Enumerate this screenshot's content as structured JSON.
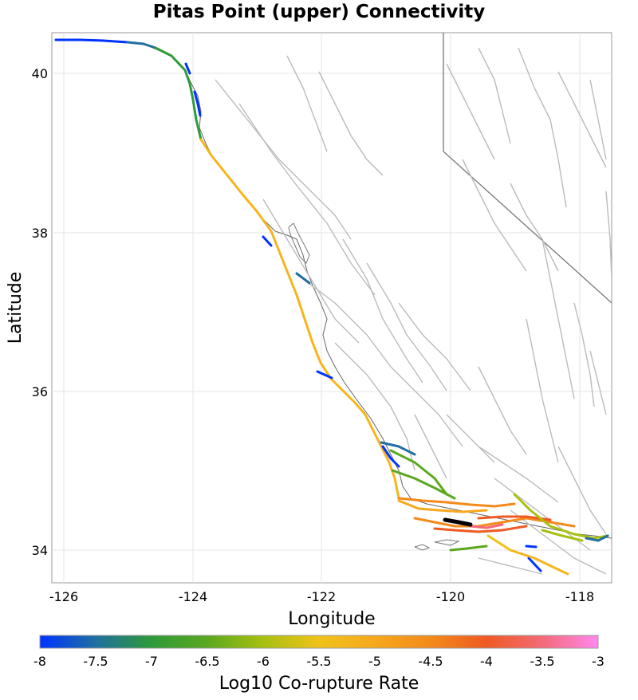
{
  "title": "Pitas Point (upper) Connectivity",
  "chart_data": {
    "type": "map",
    "xlabel": "Longitude",
    "ylabel": "Latitude",
    "xlim": [
      -126.3,
      -117.3
    ],
    "ylim": [
      33.6,
      40.5
    ],
    "x_ticks": [
      "-126",
      "-124",
      "-122",
      "-120",
      "-118"
    ],
    "y_ticks": [
      "34",
      "36",
      "38",
      "40"
    ],
    "grid": true,
    "colorbar": {
      "label": "Log10 Co-rupture Rate",
      "range": [
        -8,
        -3
      ],
      "ticks": [
        "-8",
        "-7.5",
        "-7",
        "-6.5",
        "-6",
        "-5.5",
        "-5",
        "-4.5",
        "-4",
        "-3.5",
        "-3"
      ],
      "colors": [
        "#0033ff",
        "#1f6fa0",
        "#2e9a3a",
        "#5aa81e",
        "#a8c010",
        "#f0c21a",
        "#f7a81c",
        "#f38a1a",
        "#ef5a22",
        "#f46a78",
        "#ff88ee"
      ]
    },
    "source_fault": "Pitas Point (upper)"
  }
}
